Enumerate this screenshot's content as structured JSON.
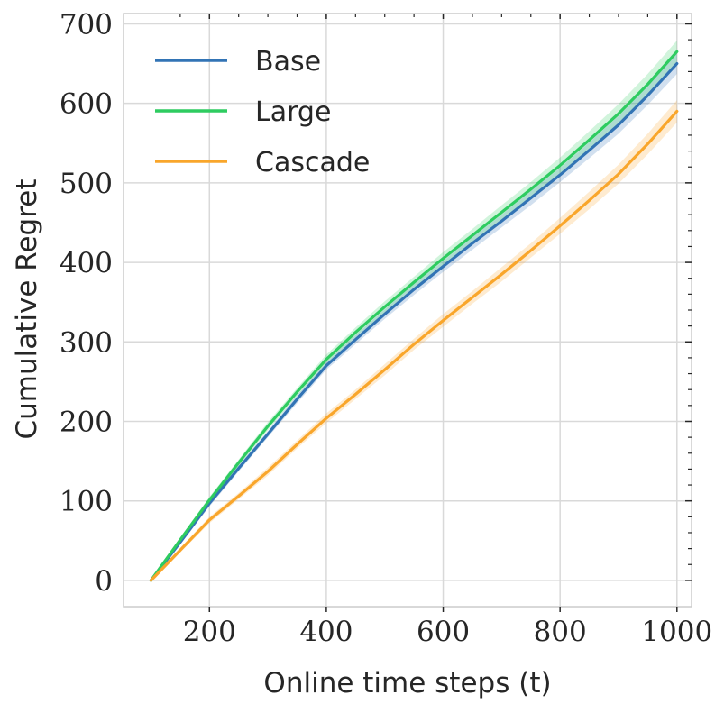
{
  "chart_data": {
    "type": "line",
    "xlabel": "Online time steps (t)",
    "ylabel": "Cumulative Regret",
    "xlim": [
      53,
      1025
    ],
    "ylim": [
      -33,
      713
    ],
    "xticks": [
      200,
      400,
      600,
      800,
      1000
    ],
    "yticks": [
      0,
      100,
      200,
      300,
      400,
      500,
      600,
      700
    ],
    "grid": true,
    "legend_position": "top-left",
    "x": [
      100,
      150,
      200,
      250,
      300,
      350,
      400,
      450,
      500,
      550,
      600,
      650,
      700,
      750,
      800,
      850,
      900,
      950,
      1000
    ],
    "series": [
      {
        "name": "Base",
        "color": "#3274b5",
        "values": [
          0,
          48,
          97,
          141,
          184,
          228,
          270,
          303,
          335,
          366,
          395,
          424,
          452,
          481,
          510,
          541,
          573,
          610,
          650
        ],
        "band": [
          3,
          3,
          4,
          4,
          4,
          5,
          5,
          6,
          6,
          7,
          7,
          8,
          8,
          9,
          9,
          10,
          11,
          12,
          13
        ]
      },
      {
        "name": "Large",
        "color": "#2ecc60",
        "values": [
          0,
          51,
          101,
          148,
          194,
          237,
          278,
          312,
          344,
          375,
          405,
          434,
          463,
          492,
          522,
          554,
          587,
          624,
          665
        ],
        "band": [
          3,
          3,
          4,
          4,
          5,
          5,
          6,
          6,
          7,
          7,
          8,
          8,
          9,
          9,
          10,
          11,
          12,
          13,
          14
        ]
      },
      {
        "name": "Cascade",
        "color": "#f9a62b",
        "values": [
          0,
          38,
          76,
          106,
          137,
          171,
          204,
          234,
          265,
          297,
          327,
          356,
          385,
          415,
          446,
          478,
          511,
          549,
          590
        ],
        "band": [
          3,
          3,
          4,
          4,
          5,
          5,
          6,
          6,
          7,
          7,
          8,
          8,
          9,
          9,
          10,
          11,
          12,
          13,
          14
        ]
      }
    ]
  }
}
